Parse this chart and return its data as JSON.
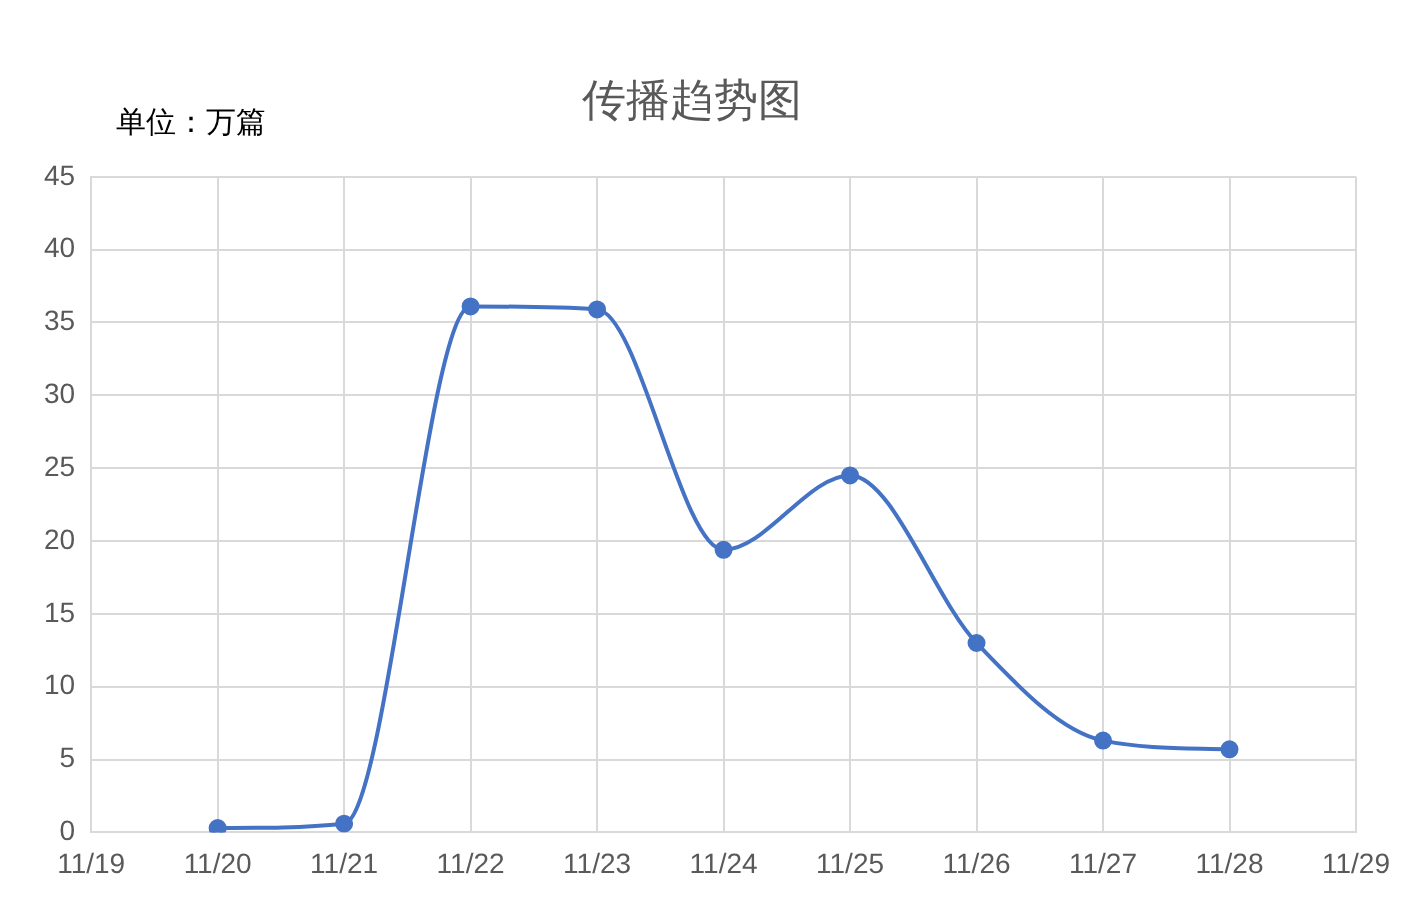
{
  "chart_data": {
    "type": "line",
    "title": "传播趋势图",
    "ylabel": "单位：万篇",
    "categories": [
      "11/19",
      "11/20",
      "11/21",
      "11/22",
      "11/23",
      "11/24",
      "11/25",
      "11/26",
      "11/27",
      "11/28",
      "11/29"
    ],
    "series": [
      {
        "color": "#4472c4",
        "values": [
          null,
          0.3,
          0.6,
          36.1,
          35.9,
          19.4,
          24.5,
          13,
          6.3,
          5.7,
          null
        ]
      }
    ],
    "ylim": [
      0,
      45
    ],
    "yticks": [
      0,
      5,
      10,
      15,
      20,
      25,
      30,
      35,
      40,
      45
    ],
    "grid": true,
    "legend": false,
    "marker": "circle",
    "line_style": "solid"
  }
}
